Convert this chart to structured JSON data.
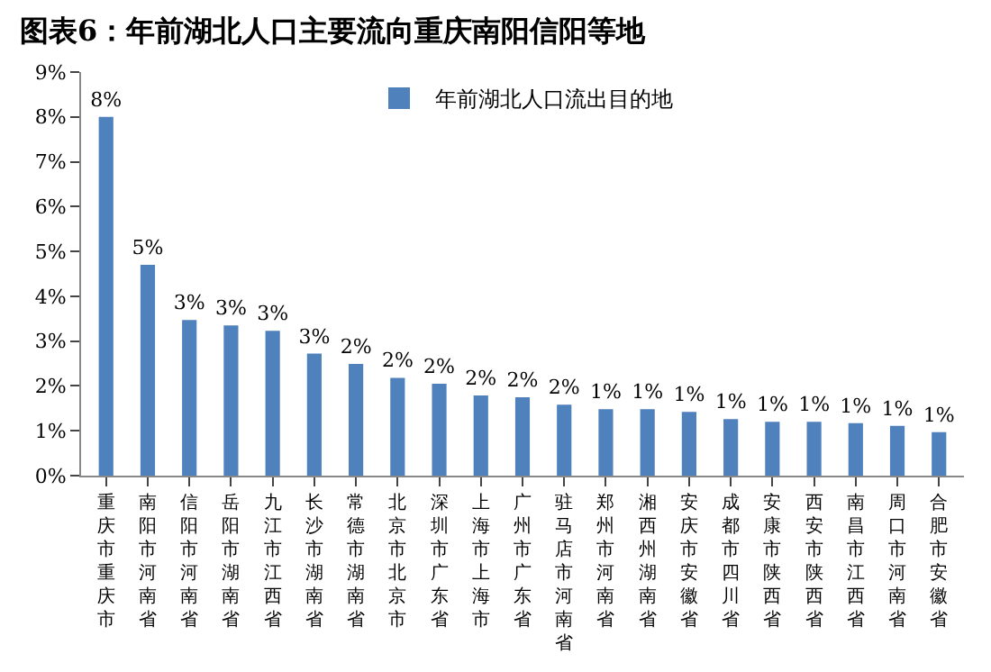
{
  "chart_data": {
    "type": "bar",
    "title": "图表6：年前湖北人口主要流向重庆南阳信阳等地",
    "categories": [
      "重庆市重庆市",
      "南阳市河南省",
      "信阳市河南省",
      "岳阳市湖南省",
      "九江市江西省",
      "长沙市湖南省",
      "常德市湖南省",
      "北京市北京市",
      "深圳市广东省",
      "上海市上海市",
      "广州市广东省",
      "驻马店市河南省",
      "郑州市河南省",
      "湘西州湖南省",
      "安庆市安徽省",
      "成都市四川省",
      "安康市陕西省",
      "西安市陕西省",
      "南昌市江西省",
      "周口市河南省",
      "合肥市安徽省"
    ],
    "series": [
      {
        "name": "年前湖北人口流出目的地",
        "color": "#4f81bd",
        "values": [
          8.0,
          4.7,
          3.47,
          3.35,
          3.23,
          2.72,
          2.49,
          2.18,
          2.05,
          1.79,
          1.75,
          1.58,
          1.48,
          1.48,
          1.42,
          1.26,
          1.2,
          1.2,
          1.17,
          1.11,
          0.97
        ],
        "value_labels": [
          "8%",
          "5%",
          "3%",
          "3%",
          "3%",
          "3%",
          "2%",
          "2%",
          "2%",
          "2%",
          "2%",
          "2%",
          "1%",
          "1%",
          "1%",
          "1%",
          "1%",
          "1%",
          "1%",
          "1%",
          "1%"
        ]
      }
    ],
    "ylim": [
      0,
      9
    ],
    "yticks": [
      {
        "value": 0,
        "label": "0%"
      },
      {
        "value": 1,
        "label": "1%"
      },
      {
        "value": 2,
        "label": "2%"
      },
      {
        "value": 3,
        "label": "3%"
      },
      {
        "value": 4,
        "label": "4%"
      },
      {
        "value": 5,
        "label": "5%"
      },
      {
        "value": 6,
        "label": "6%"
      },
      {
        "value": 7,
        "label": "7%"
      },
      {
        "value": 8,
        "label": "8%"
      },
      {
        "value": 9,
        "label": "9%"
      }
    ],
    "legend": "top"
  }
}
